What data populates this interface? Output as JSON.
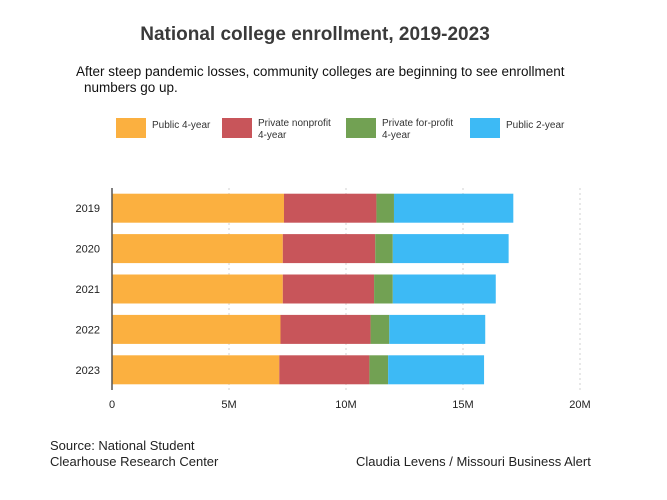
{
  "chart_data": {
    "type": "bar",
    "orientation": "horizontal",
    "stacked": true,
    "title": "National college enrollment, 2019-2023",
    "subtitle_line1": "After steep pandemic losses, community colleges are beginning to see enrollment",
    "subtitle_line2": "numbers go up.",
    "categories": [
      "2019",
      "2020",
      "2021",
      "2022",
      "2023"
    ],
    "series": [
      {
        "name": "Public 4-year",
        "name_line1": "Public 4-year",
        "name_line2": "",
        "color": "#fbb040",
        "values": [
          7.35,
          7.3,
          7.3,
          7.2,
          7.15
        ]
      },
      {
        "name": "Private nonprofit 4-year",
        "name_line1": "Private nonprofit",
        "name_line2": "4-year",
        "color": "#c8555a",
        "values": [
          3.95,
          3.95,
          3.9,
          3.85,
          3.85
        ]
      },
      {
        "name": "Private for-profit 4-year",
        "name_line1": "Private for-profit",
        "name_line2": "4-year",
        "color": "#72a153",
        "values": [
          0.75,
          0.75,
          0.8,
          0.8,
          0.8
        ]
      },
      {
        "name": "Public 2-year",
        "name_line1": "Public 2-year",
        "name_line2": "",
        "color": "#3dbaf5",
        "values": [
          5.1,
          4.95,
          4.4,
          4.1,
          4.1
        ]
      }
    ],
    "x_ticks": [
      {
        "value": 0,
        "label": "0"
      },
      {
        "value": 5,
        "label": "5M"
      },
      {
        "value": 10,
        "label": "10M"
      },
      {
        "value": 15,
        "label": "15M"
      },
      {
        "value": 20,
        "label": "20M"
      }
    ],
    "xlim": [
      0,
      20
    ],
    "grid": true,
    "legend_position": "top"
  },
  "source_line1": "Source: National Student",
  "source_line2": "Clearhouse Research Center",
  "credit": "Claudia Levens / Missouri Business Alert"
}
